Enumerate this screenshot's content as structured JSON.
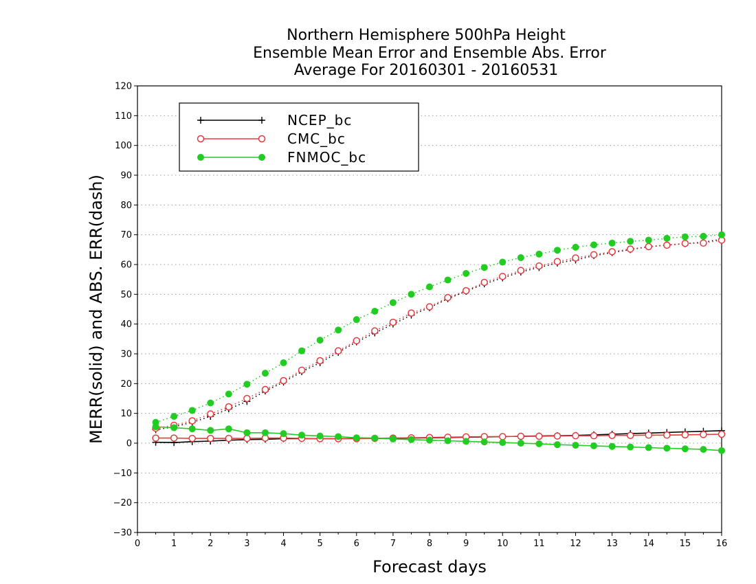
{
  "chart_data": {
    "type": "line",
    "title": [
      "Northern Hemisphere 500hPa Height",
      "Ensemble Mean Error and Ensemble Abs. Error",
      "Average For 20160301 - 20160531"
    ],
    "xlabel": "Forecast days",
    "ylabel": "MERR(solid) and ABS. ERR(dash)",
    "xlim": [
      0,
      16
    ],
    "ylim": [
      -30,
      120
    ],
    "xticks": [
      0,
      1,
      2,
      3,
      4,
      5,
      6,
      7,
      8,
      9,
      10,
      11,
      12,
      13,
      14,
      15,
      16
    ],
    "yticks": [
      -30,
      -20,
      -10,
      0,
      10,
      20,
      30,
      40,
      50,
      60,
      70,
      80,
      90,
      100,
      110,
      120
    ],
    "grid": "horizontal dotted",
    "legend_position": "top-left",
    "x": [
      0.5,
      1,
      1.5,
      2,
      2.5,
      3,
      3.5,
      4,
      4.5,
      5,
      5.5,
      6,
      6.5,
      7,
      7.5,
      8,
      8.5,
      9,
      9.5,
      10,
      10.5,
      11,
      11.5,
      12,
      12.5,
      13,
      13.5,
      14,
      14.5,
      15,
      15.5,
      16
    ],
    "series": [
      {
        "name": "NCEP_bc",
        "color": "#000000",
        "marker": "plus",
        "merr": [
          0.3,
          0.2,
          0.5,
          0.7,
          1.0,
          1.2,
          1.3,
          1.5,
          1.5,
          1.5,
          1.5,
          1.6,
          1.6,
          1.6,
          1.7,
          1.8,
          1.9,
          2.0,
          2.1,
          2.2,
          2.3,
          2.4,
          2.5,
          2.6,
          2.8,
          3.0,
          3.2,
          3.4,
          3.6,
          3.8,
          4.0,
          4.2
        ],
        "abs_err": [
          4.5,
          5.5,
          7.0,
          9.0,
          11.5,
          14.0,
          17.5,
          20.5,
          24.0,
          27.0,
          30.5,
          34.0,
          37.0,
          40.0,
          43.0,
          45.5,
          48.5,
          51.0,
          53.5,
          55.5,
          57.5,
          59.0,
          60.5,
          61.5,
          63.0,
          64.0,
          65.0,
          66.0,
          66.5,
          67.0,
          67.5,
          68.5
        ]
      },
      {
        "name": "CMC_bc",
        "color": "#e8393c",
        "marker": "open-circle",
        "merr": [
          1.7,
          1.7,
          1.6,
          1.6,
          1.6,
          1.6,
          1.7,
          1.7,
          1.6,
          1.5,
          1.5,
          1.5,
          1.6,
          1.7,
          1.8,
          1.9,
          2.0,
          2.1,
          2.2,
          2.2,
          2.3,
          2.3,
          2.4,
          2.5,
          2.5,
          2.6,
          2.6,
          2.7,
          2.7,
          2.8,
          2.9,
          3.0
        ],
        "abs_err": [
          5.0,
          6.0,
          7.5,
          9.8,
          12.2,
          15.0,
          18.0,
          21.0,
          24.5,
          27.7,
          31.0,
          34.4,
          37.7,
          40.6,
          43.7,
          45.8,
          48.9,
          51.2,
          54.0,
          56.0,
          58.0,
          59.5,
          61.0,
          62.2,
          63.3,
          64.3,
          65.2,
          66.0,
          66.5,
          67.1,
          67.2,
          68.2
        ]
      },
      {
        "name": "FNMOC_bc",
        "color": "#22cc22",
        "marker": "filled-circle",
        "merr": [
          5.5,
          5.2,
          4.8,
          4.3,
          4.8,
          3.5,
          3.5,
          3.2,
          2.7,
          2.4,
          2.2,
          1.8,
          1.7,
          1.4,
          1.2,
          1.0,
          0.8,
          0.6,
          0.4,
          0.2,
          0.0,
          -0.2,
          -0.5,
          -0.7,
          -0.9,
          -1.1,
          -1.3,
          -1.5,
          -1.7,
          -1.9,
          -2.1,
          -2.5
        ],
        "abs_err": [
          7.0,
          9.0,
          11.0,
          13.5,
          16.5,
          19.8,
          23.5,
          27.0,
          31.0,
          34.6,
          38.0,
          41.5,
          44.3,
          47.2,
          50.0,
          52.5,
          54.8,
          57.0,
          59.0,
          60.8,
          62.3,
          63.5,
          64.8,
          65.8,
          66.6,
          67.2,
          67.8,
          68.2,
          68.8,
          69.3,
          69.5,
          70.0
        ]
      }
    ]
  }
}
